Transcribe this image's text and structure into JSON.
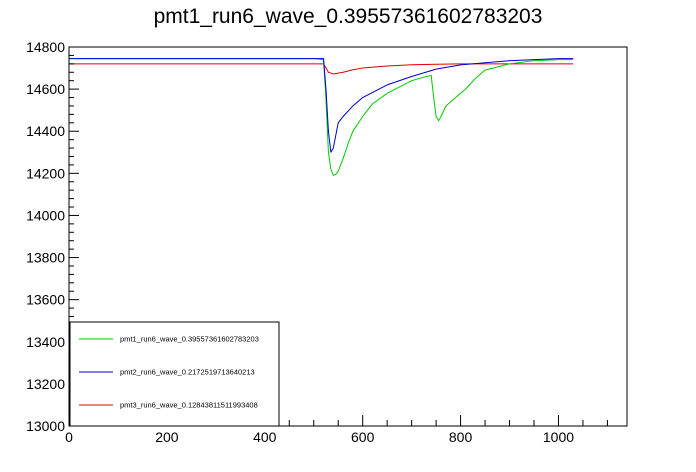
{
  "chart_data": {
    "type": "line",
    "title": "pmt1_run6_wave_0.39557361602783203",
    "xlabel": "",
    "ylabel": "",
    "xlim": [
      0,
      1140
    ],
    "ylim": [
      13000,
      14800
    ],
    "x_ticks": [
      0,
      200,
      400,
      600,
      800,
      1000
    ],
    "y_ticks": [
      13000,
      13200,
      13400,
      13600,
      13800,
      14000,
      14200,
      14400,
      14600,
      14800
    ],
    "grid": false,
    "legend_position": "bottom-left",
    "series": [
      {
        "name": "pmt1_run6_wave_0.39557361602783203",
        "color": "#00cc00",
        "x": [
          0,
          100,
          200,
          300,
          400,
          500,
          520,
          525,
          530,
          535,
          540,
          545,
          550,
          560,
          570,
          580,
          600,
          620,
          650,
          700,
          730,
          740,
          745,
          750,
          755,
          760,
          770,
          790,
          810,
          830,
          850,
          900,
          950,
          1000,
          1030
        ],
        "y": [
          14745,
          14745,
          14745,
          14745,
          14745,
          14745,
          14740,
          14550,
          14300,
          14220,
          14190,
          14195,
          14210,
          14270,
          14340,
          14400,
          14470,
          14530,
          14580,
          14640,
          14660,
          14665,
          14560,
          14470,
          14450,
          14470,
          14520,
          14560,
          14600,
          14650,
          14690,
          14720,
          14735,
          14740,
          14740
        ]
      },
      {
        "name": "pmt2_run6_wave_0.2172519713640213",
        "color": "#0000cc",
        "x": [
          0,
          100,
          200,
          300,
          400,
          500,
          520,
          525,
          530,
          535,
          540,
          545,
          550,
          560,
          580,
          600,
          650,
          700,
          750,
          800,
          850,
          900,
          950,
          1000,
          1030
        ],
        "y": [
          14745,
          14745,
          14745,
          14745,
          14745,
          14745,
          14745,
          14600,
          14400,
          14300,
          14320,
          14380,
          14440,
          14470,
          14520,
          14560,
          14620,
          14660,
          14695,
          14715,
          14725,
          14735,
          14740,
          14745,
          14745
        ]
      },
      {
        "name": "pmt3_run6_wave_0.12843811511993408",
        "color": "#dd0000",
        "x": [
          0,
          100,
          200,
          300,
          400,
          500,
          520,
          525,
          530,
          540,
          560,
          580,
          600,
          650,
          700,
          750,
          800,
          900,
          1000,
          1030
        ],
        "y": [
          14720,
          14720,
          14720,
          14720,
          14720,
          14720,
          14720,
          14700,
          14680,
          14672,
          14680,
          14692,
          14700,
          14710,
          14716,
          14718,
          14720,
          14720,
          14720,
          14720
        ]
      }
    ]
  }
}
